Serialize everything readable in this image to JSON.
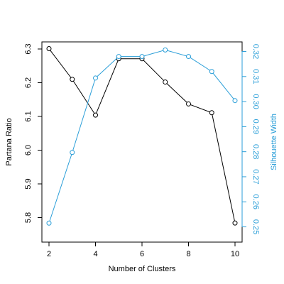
{
  "chart_data": {
    "type": "line",
    "title": "",
    "xlabel": "Number of Clusters",
    "ylabel": "Partana Ratio",
    "y2label": "Silhouette Width",
    "xlim": [
      2,
      10
    ],
    "ylim": [
      5.78,
      6.3
    ],
    "y2lim": [
      0.251,
      0.321
    ],
    "xticks": [
      "2",
      "4",
      "6",
      "8",
      "10"
    ],
    "yticks": [
      "5.8",
      "5.9",
      "6.0",
      "6.1",
      "6.2",
      "6.3"
    ],
    "y2ticks": [
      "0.25",
      "0.26",
      "0.27",
      "0.28",
      "0.29",
      "0.30",
      "0.31",
      "0.32"
    ],
    "grid": false,
    "x": [
      2,
      3,
      4,
      5,
      6,
      7,
      8,
      9,
      10
    ],
    "series": [
      {
        "axis": "left",
        "color": "#000000",
        "values": [
          6.301,
          6.21,
          6.104,
          6.271,
          6.271,
          6.202,
          6.137,
          6.111,
          5.784
        ]
      },
      {
        "axis": "right",
        "color": "#2a9ed8",
        "values": [
          0.2515,
          0.2797,
          0.3094,
          0.318,
          0.318,
          0.3206,
          0.318,
          0.312,
          0.3004
        ]
      }
    ]
  }
}
